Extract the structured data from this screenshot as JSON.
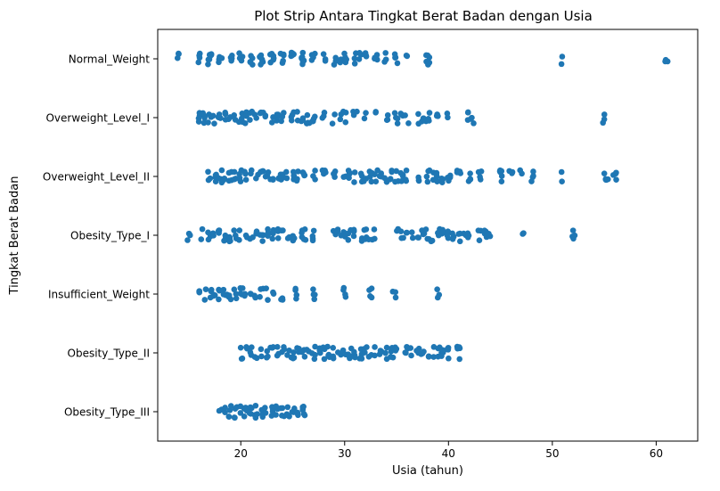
{
  "chart_data": {
    "type": "scatter",
    "title": "Plot Strip Antara Tingkat Berat Badan dengan Usia",
    "xlabel": "Usia (tahun)",
    "ylabel": "Tingkat Berat Badan",
    "xlim": [
      12,
      64
    ],
    "xticks": [
      20,
      30,
      40,
      50,
      60
    ],
    "grid": false,
    "marker_color": "#1f77b4",
    "categories": [
      "Normal_Weight",
      "Overweight_Level_I",
      "Overweight_Level_II",
      "Obesity_Type_I",
      "Insufficient_Weight",
      "Obesity_Type_II",
      "Obesity_Type_III"
    ],
    "series": [
      {
        "category": "Normal_Weight",
        "ages": [
          14,
          16,
          17,
          17,
          18,
          18,
          19,
          19,
          20,
          20,
          21,
          21,
          22,
          22,
          23,
          23,
          24,
          24,
          25,
          25,
          26,
          26,
          27,
          27,
          28,
          29,
          29.5,
          30,
          31,
          31.5,
          32,
          33,
          33,
          34,
          35,
          36,
          38,
          38,
          51,
          61
        ]
      },
      {
        "category": "Overweight_Level_I",
        "ages": [
          16,
          16.5,
          17,
          17.5,
          18,
          18.5,
          19,
          19.5,
          20,
          20.5,
          21,
          21.5,
          22,
          22.5,
          23,
          23.5,
          24,
          25,
          25.5,
          26,
          26.5,
          27,
          28,
          29,
          29.5,
          30,
          31,
          32,
          33,
          34,
          35,
          35.5,
          36,
          37,
          37.5,
          38,
          39,
          40,
          42,
          42.3,
          55
        ]
      },
      {
        "category": "Overweight_Level_II",
        "ages": [
          17,
          17.5,
          18,
          18.5,
          19,
          19.5,
          20,
          20.5,
          21,
          21.5,
          22,
          22.5,
          23,
          23.5,
          24,
          24.5,
          25,
          25.5,
          26,
          27,
          28,
          29,
          30,
          30.5,
          31,
          31.5,
          32,
          32.5,
          33,
          33.5,
          34,
          34.5,
          35,
          35.5,
          36,
          37,
          38,
          38.5,
          39,
          39.5,
          40,
          41,
          42,
          43,
          45,
          45,
          46,
          47,
          48,
          50.8,
          55,
          55.3,
          56
        ]
      },
      {
        "category": "Obesity_Type_I",
        "ages": [
          15,
          16.3,
          17,
          17.5,
          18,
          18.5,
          19,
          19.5,
          20,
          20.5,
          21,
          21.5,
          22,
          22.5,
          23,
          23.5,
          24,
          24.5,
          25,
          26,
          26.2,
          27,
          29,
          29.5,
          30,
          30.5,
          31,
          31.5,
          32,
          32.5,
          33,
          35,
          35.5,
          36,
          36.5,
          37,
          37.5,
          38,
          38.5,
          39,
          39.5,
          40,
          40.5,
          41,
          41.5,
          42,
          43,
          43.5,
          44,
          47.2,
          52
        ]
      },
      {
        "category": "Insufficient_Weight",
        "ages": [
          16,
          16.5,
          17,
          17.5,
          18,
          18.5,
          19,
          19.5,
          20,
          20.5,
          21,
          21.5,
          22,
          22.5,
          23,
          24,
          25.3,
          27,
          30,
          32.5,
          34.8,
          39
        ]
      },
      {
        "category": "Obesity_Type_II",
        "ages": [
          20,
          20.5,
          21,
          21.5,
          22,
          22.5,
          23,
          23.5,
          24,
          24.5,
          25,
          25.5,
          26,
          26.5,
          27,
          27.5,
          28,
          28.5,
          29,
          29.5,
          30,
          30.5,
          31,
          31.5,
          32,
          32.5,
          33,
          33.5,
          34,
          34.5,
          35,
          36,
          36.5,
          37,
          37.5,
          38,
          38.5,
          39,
          39.5,
          40,
          41,
          41
        ]
      },
      {
        "category": "Obesity_Type_III",
        "ages": [
          18,
          18.5,
          19,
          19.5,
          20,
          20.5,
          21,
          21.5,
          22,
          22.5,
          23,
          23.5,
          24,
          24.5,
          25,
          25.5,
          26,
          26
        ]
      }
    ]
  }
}
